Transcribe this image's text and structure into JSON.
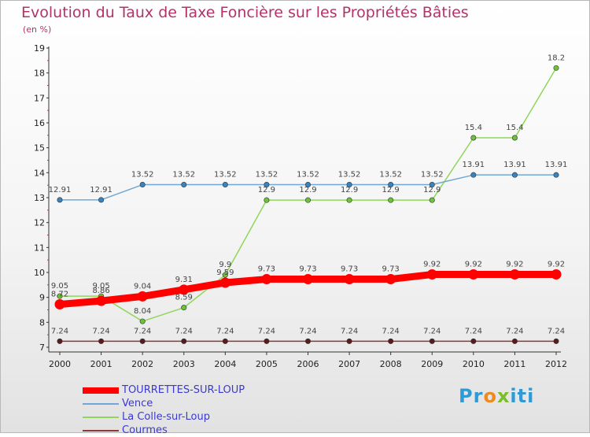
{
  "chart_data": {
    "type": "line",
    "title": "Evolution du Taux de Taxe Foncière sur les Propriétés Bâties",
    "subtitle": "(en %)",
    "xlabel": "",
    "ylabel": "",
    "x": [
      "2000",
      "2001",
      "2002",
      "2003",
      "2004",
      "2005",
      "2006",
      "2007",
      "2008",
      "2009",
      "2010",
      "2011",
      "2012"
    ],
    "ylim": [
      7,
      19
    ],
    "yticks": [
      7,
      8,
      9,
      10,
      11,
      12,
      13,
      14,
      15,
      16,
      17,
      18,
      19
    ],
    "grid": false,
    "legend_position": "bottom-left",
    "series": [
      {
        "name": "TOURRETTES-SUR-LOUP",
        "color": "#ff0000",
        "width": "thick",
        "values": [
          8.72,
          8.86,
          9.04,
          9.31,
          9.59,
          9.73,
          9.73,
          9.73,
          9.73,
          9.92,
          9.92,
          9.92,
          9.92
        ],
        "labels": [
          "8.72",
          "8.86",
          "9.04",
          "9.31",
          "9.59",
          "9.73",
          "9.73",
          "9.73",
          "9.73",
          "9.92",
          "9.92",
          "9.92",
          "9.92"
        ]
      },
      {
        "name": "Vence",
        "color": "#6fa8d6",
        "marker_color": "#3b83bd",
        "width": "thin",
        "values": [
          12.91,
          12.91,
          13.52,
          13.52,
          13.52,
          13.52,
          13.52,
          13.52,
          13.52,
          13.52,
          13.91,
          13.91,
          13.91
        ],
        "labels": [
          "12.91",
          "12.91",
          "13.52",
          "13.52",
          "13.52",
          "13.52",
          "13.52",
          "13.52",
          "13.52",
          "13.52",
          "13.91",
          "13.91",
          "13.91"
        ]
      },
      {
        "name": "La Colle-sur-Loup",
        "color": "#8fd65a",
        "marker_color": "#6cc23a",
        "width": "thin",
        "values": [
          9.05,
          9.05,
          8.04,
          8.59,
          9.9,
          12.9,
          12.9,
          12.9,
          12.9,
          12.9,
          15.4,
          15.4,
          18.2
        ],
        "labels": [
          "9.05",
          "9.05",
          "8.04",
          "8.59",
          "9.9",
          "12.9",
          "12.9",
          "12.9",
          "12.9",
          "12.9",
          "15.4",
          "15.4",
          "18.2"
        ]
      },
      {
        "name": "Courmes",
        "color": "#8b3a3a",
        "marker_color": "#5e1a1a",
        "width": "thin",
        "values": [
          7.24,
          7.24,
          7.24,
          7.24,
          7.24,
          7.24,
          7.24,
          7.24,
          7.24,
          7.24,
          7.24,
          7.24,
          7.24
        ],
        "labels": [
          "7.24",
          "7.24",
          "7.24",
          "7.24",
          "7.24",
          "7.24",
          "7.24",
          "7.24",
          "7.24",
          "7.24",
          "7.24",
          "7.24",
          "7.24"
        ]
      }
    ]
  },
  "logo": {
    "text_a": "Pr",
    "text_b": "o",
    "text_c": "x",
    "text_d": "iti"
  }
}
